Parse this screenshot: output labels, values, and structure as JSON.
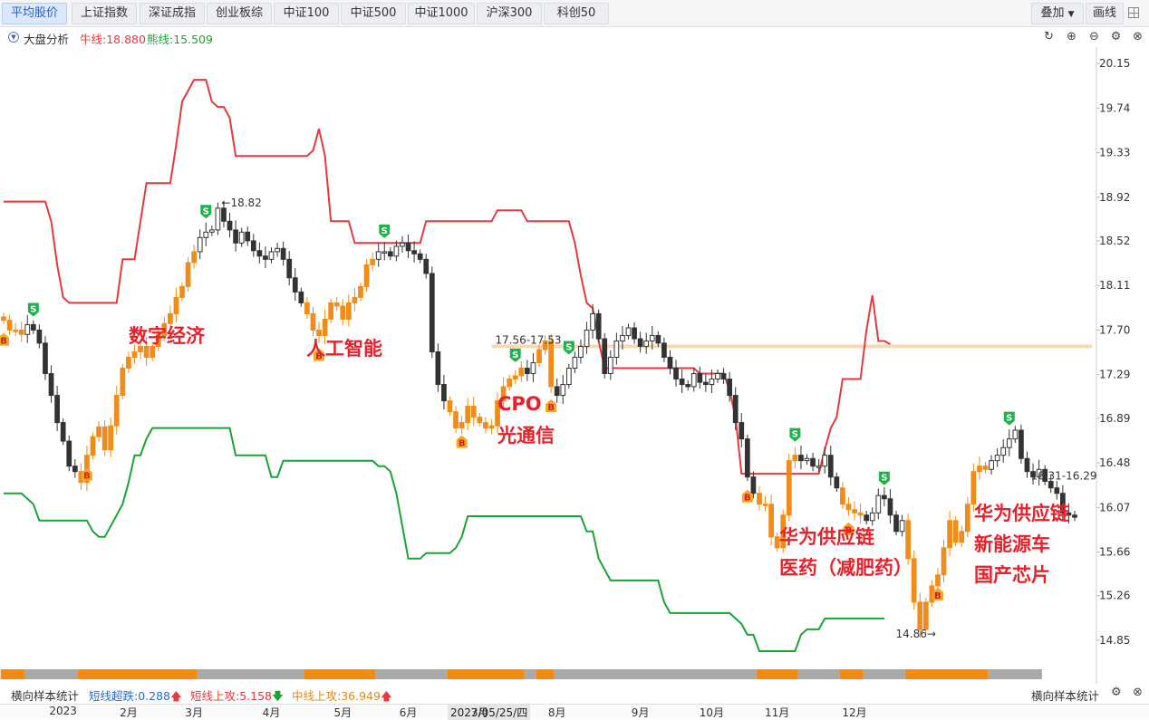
{
  "tabs": [
    {
      "label": "平均股价",
      "active": true
    },
    {
      "label": "上证指数",
      "active": false
    },
    {
      "label": "深证成指",
      "active": false
    },
    {
      "label": "创业板综",
      "active": false
    },
    {
      "label": "中证100",
      "active": false
    },
    {
      "label": "中证500",
      "active": false
    },
    {
      "label": "中证1000",
      "active": false
    },
    {
      "label": "沪深300",
      "active": false
    },
    {
      "label": "科创50",
      "active": false
    }
  ],
  "right_buttons": {
    "overlay": "叠加",
    "draw": "画线"
  },
  "toolbar": {
    "title": "大盘分析",
    "bull_label": "牛线:18.880",
    "bear_label": "熊线:15.509"
  },
  "footer": {
    "label": "横向样本统计",
    "short_down": "短线超跌:0.288",
    "short_up": "短线上攻:5.158",
    "mid_up": "中线上攻:36.949",
    "right_label": "横向样本统计"
  },
  "colors": {
    "bull": "#e8383d",
    "bear": "#1aa336",
    "up": "#f08c1b",
    "down": "#333333",
    "annotation": "#e8202a",
    "signal_buy": "#f5a623",
    "signal_sell": "#22b24c",
    "band": "#f7d9b5"
  },
  "chart_data": {
    "type": "candlestick",
    "ylim": [
      14.6,
      20.3
    ],
    "yticks": [
      20.15,
      19.74,
      19.33,
      18.92,
      18.52,
      18.11,
      17.7,
      17.29,
      16.89,
      16.48,
      16.07,
      15.66,
      15.26,
      14.85
    ],
    "x_months": [
      {
        "label": "2023",
        "index": 10
      },
      {
        "label": "2月",
        "index": 21
      },
      {
        "label": "3月",
        "index": 32
      },
      {
        "label": "4月",
        "index": 45
      },
      {
        "label": "5月",
        "index": 57
      },
      {
        "label": "6月",
        "index": 68
      },
      {
        "label": "7月",
        "index": 80
      },
      {
        "label": "8月",
        "index": 93
      },
      {
        "label": "9月",
        "index": 107
      },
      {
        "label": "10月",
        "index": 119
      },
      {
        "label": "11月",
        "index": 130
      },
      {
        "label": "12月",
        "index": 143
      }
    ],
    "crosshair_date": "2023/05/25/四",
    "bull_line": [
      18.88,
      18.88,
      18.88,
      18.88,
      18.88,
      18.88,
      18.88,
      18.88,
      18.7,
      18.3,
      18.0,
      17.95,
      17.95,
      17.95,
      17.95,
      17.95,
      17.95,
      17.95,
      17.95,
      17.95,
      18.35,
      18.35,
      18.35,
      18.7,
      19.05,
      19.05,
      19.05,
      19.05,
      19.05,
      19.4,
      19.8,
      19.9,
      20.0,
      20.0,
      20.0,
      19.8,
      19.75,
      19.75,
      19.65,
      19.3,
      19.3,
      19.3,
      19.3,
      19.3,
      19.3,
      19.3,
      19.3,
      19.3,
      19.3,
      19.3,
      19.3,
      19.3,
      19.35,
      19.55,
      19.3,
      18.7,
      18.7,
      18.7,
      18.7,
      18.5,
      18.5,
      18.5,
      18.5,
      18.5,
      18.5,
      18.5,
      18.5,
      18.5,
      18.5,
      18.5,
      18.5,
      18.7,
      18.7,
      18.7,
      18.7,
      18.7,
      18.7,
      18.7,
      18.7,
      18.7,
      18.7,
      18.7,
      18.7,
      18.8,
      18.8,
      18.8,
      18.8,
      18.8,
      18.7,
      18.7,
      18.7,
      18.7,
      18.7,
      18.7,
      18.7,
      18.7,
      18.5,
      18.2,
      17.95,
      17.9,
      17.6,
      17.35,
      17.35,
      17.35,
      17.35,
      17.35,
      17.35,
      17.35,
      17.35,
      17.35,
      17.35,
      17.35,
      17.35,
      17.35,
      17.35,
      17.35,
      17.35,
      17.3,
      17.3,
      17.3,
      17.3,
      17.3,
      17.15,
      16.9,
      16.38,
      16.38,
      16.38,
      16.38,
      16.38,
      16.38,
      16.38,
      16.38,
      16.38,
      16.38,
      16.38,
      16.38,
      16.38,
      16.38,
      16.6,
      16.8,
      16.9,
      17.25,
      17.25,
      17.25,
      17.25,
      17.7,
      18.02,
      17.6,
      17.6,
      17.57
    ],
    "bear_line": [
      16.2,
      16.2,
      16.2,
      16.2,
      16.15,
      16.1,
      15.95,
      15.95,
      15.95,
      15.95,
      15.95,
      15.95,
      15.95,
      15.95,
      15.95,
      15.85,
      15.8,
      15.8,
      15.9,
      16.0,
      16.1,
      16.3,
      16.55,
      16.55,
      16.7,
      16.8,
      16.8,
      16.8,
      16.8,
      16.8,
      16.8,
      16.8,
      16.8,
      16.8,
      16.8,
      16.8,
      16.8,
      16.8,
      16.8,
      16.55,
      16.55,
      16.55,
      16.55,
      16.55,
      16.55,
      16.35,
      16.35,
      16.5,
      16.5,
      16.5,
      16.5,
      16.5,
      16.5,
      16.5,
      16.5,
      16.5,
      16.5,
      16.5,
      16.5,
      16.5,
      16.5,
      16.5,
      16.5,
      16.45,
      16.45,
      16.4,
      16.2,
      15.9,
      15.6,
      15.6,
      15.6,
      15.65,
      15.65,
      15.65,
      15.65,
      15.65,
      15.7,
      15.8,
      15.99,
      15.99,
      15.99,
      15.99,
      15.99,
      15.99,
      15.99,
      15.99,
      15.99,
      15.99,
      15.99,
      15.99,
      15.99,
      15.99,
      15.99,
      15.99,
      15.99,
      15.99,
      15.99,
      15.99,
      15.85,
      15.85,
      15.6,
      15.5,
      15.4,
      15.4,
      15.4,
      15.4,
      15.4,
      15.4,
      15.4,
      15.4,
      15.4,
      15.2,
      15.1,
      15.1,
      15.1,
      15.1,
      15.1,
      15.1,
      15.1,
      15.1,
      15.1,
      15.1,
      15.1,
      15.05,
      15.0,
      14.9,
      14.9,
      14.75,
      14.75,
      14.75,
      14.75,
      14.75,
      14.75,
      14.75,
      14.9,
      14.95,
      14.95,
      14.95,
      15.05,
      15.05,
      15.05,
      15.05,
      15.05,
      15.05,
      15.05,
      15.05,
      15.05,
      15.05,
      15.05
    ],
    "closes": [
      17.79,
      17.7,
      17.7,
      17.66,
      17.75,
      17.7,
      17.58,
      17.3,
      17.1,
      16.85,
      16.68,
      16.45,
      16.4,
      16.3,
      16.55,
      16.72,
      16.81,
      16.6,
      16.82,
      17.1,
      17.35,
      17.45,
      17.5,
      17.55,
      17.45,
      17.55,
      17.65,
      17.76,
      17.85,
      18.0,
      18.1,
      18.32,
      18.42,
      18.55,
      18.6,
      18.62,
      18.82,
      18.7,
      18.62,
      18.5,
      18.6,
      18.52,
      18.43,
      18.38,
      18.35,
      18.42,
      18.45,
      18.35,
      18.18,
      18.05,
      17.95,
      17.85,
      17.7,
      17.65,
      17.8,
      17.95,
      17.92,
      17.8,
      17.95,
      18.0,
      18.1,
      18.3,
      18.35,
      18.42,
      18.42,
      18.38,
      18.47,
      18.5,
      18.43,
      18.4,
      18.35,
      18.22,
      17.5,
      17.2,
      17.05,
      16.95,
      16.8,
      16.85,
      17.0,
      16.9,
      16.85,
      16.8,
      16.82,
      17.05,
      17.18,
      17.25,
      17.28,
      17.35,
      17.3,
      17.4,
      17.52,
      17.6,
      17.18,
      17.1,
      17.2,
      17.35,
      17.45,
      17.55,
      17.7,
      17.85,
      17.62,
      17.3,
      17.45,
      17.6,
      17.65,
      17.72,
      17.62,
      17.55,
      17.6,
      17.65,
      17.58,
      17.45,
      17.35,
      17.25,
      17.2,
      17.18,
      17.3,
      17.22,
      17.2,
      17.25,
      17.3,
      17.25,
      17.1,
      16.85,
      16.7,
      16.35,
      16.2,
      16.1,
      16.1,
      15.8,
      15.7,
      16.0,
      16.5,
      16.55,
      16.5,
      16.52,
      16.45,
      16.45,
      16.55,
      16.35,
      16.25,
      16.1,
      16.05,
      16.02,
      16.0,
      15.95,
      16.02,
      16.18,
      16.15,
      16.0,
      15.85,
      15.95,
      15.6,
      15.2,
      14.95,
      15.2,
      15.35,
      15.45,
      15.7,
      15.95,
      15.75,
      15.85,
      16.1,
      16.4,
      16.45,
      16.42,
      16.5,
      16.55,
      16.62,
      16.7,
      16.78,
      16.52,
      16.4,
      16.35,
      16.42,
      16.31,
      16.25,
      16.2,
      16.02,
      16.0,
      15.98
    ],
    "annotations": [
      {
        "text": "数字经济"
      },
      {
        "text": "人工智能"
      },
      {
        "text": "CPO"
      },
      {
        "text": "光通信"
      },
      {
        "text": "华为供应链"
      },
      {
        "text": "医药（减肥药）"
      },
      {
        "text": "华为供应链"
      },
      {
        "text": "新能源车"
      },
      {
        "text": "国产芯片"
      }
    ],
    "price_labels": [
      {
        "text": "←18.82",
        "index": 36,
        "value": 18.82
      },
      {
        "text": "17.56-17.53",
        "index": 82,
        "value": 17.56
      },
      {
        "text": "14.86→",
        "index": 157,
        "value": 14.86
      },
      {
        "text": "16.31-16.29",
        "index": 172,
        "value": 16.31
      }
    ],
    "signals": [
      {
        "type": "B",
        "index": 0
      },
      {
        "type": "S",
        "index": 5
      },
      {
        "type": "B",
        "index": 14
      },
      {
        "type": "S",
        "index": 34
      },
      {
        "type": "B",
        "index": 53
      },
      {
        "type": "S",
        "index": 64
      },
      {
        "type": "B",
        "index": 77
      },
      {
        "type": "S",
        "index": 86
      },
      {
        "type": "B",
        "index": 92
      },
      {
        "type": "S",
        "index": 95
      },
      {
        "type": "B",
        "index": 125
      },
      {
        "type": "S",
        "index": 133
      },
      {
        "type": "B",
        "index": 142
      },
      {
        "type": "S",
        "index": 148
      },
      {
        "type": "B",
        "index": 157
      },
      {
        "type": "S",
        "index": 169
      }
    ],
    "band_value": 17.55,
    "strip": [
      {
        "color": "orange",
        "from": 0,
        "to": 4
      },
      {
        "color": "gray",
        "from": 4,
        "to": 13
      },
      {
        "color": "orange",
        "from": 13,
        "to": 33
      },
      {
        "color": "gray",
        "from": 33,
        "to": 51
      },
      {
        "color": "orange",
        "from": 51,
        "to": 63
      },
      {
        "color": "gray",
        "from": 63,
        "to": 75
      },
      {
        "color": "orange",
        "from": 75,
        "to": 88
      },
      {
        "color": "gray",
        "from": 88,
        "to": 90
      },
      {
        "color": "orange",
        "from": 90,
        "to": 93
      },
      {
        "color": "gray",
        "from": 93,
        "to": 127
      },
      {
        "color": "orange",
        "from": 127,
        "to": 134
      },
      {
        "color": "gray",
        "from": 134,
        "to": 141
      },
      {
        "color": "orange",
        "from": 141,
        "to": 145
      },
      {
        "color": "gray",
        "from": 145,
        "to": 152
      },
      {
        "color": "orange",
        "from": 152,
        "to": 166
      },
      {
        "color": "gray",
        "from": 166,
        "to": 175
      }
    ]
  }
}
